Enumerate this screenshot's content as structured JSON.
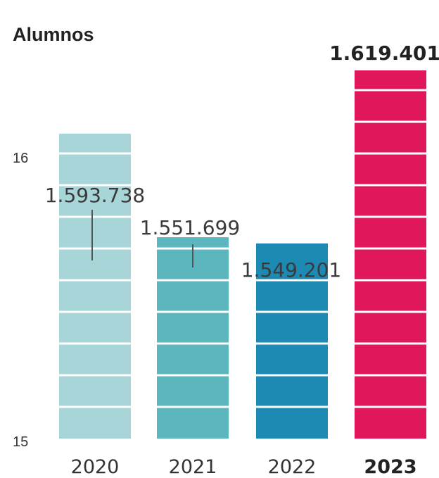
{
  "chart_data": {
    "type": "bar",
    "title": "Alumnos",
    "categories": [
      "2020",
      "2021",
      "2022",
      "2023"
    ],
    "values": [
      1593738,
      1551699,
      1549201,
      1619401
    ],
    "value_labels": [
      "1.593.738",
      "1.551.699",
      "1.549.201",
      "1.619.401"
    ],
    "highlight_index": 3,
    "yticks": [
      "15",
      "16"
    ],
    "colors": [
      "#a8d5d8",
      "#5bb6be",
      "#1d8ab3",
      "#e0175a"
    ],
    "label_line_color": "#555555",
    "grid": false,
    "legend": "none"
  }
}
